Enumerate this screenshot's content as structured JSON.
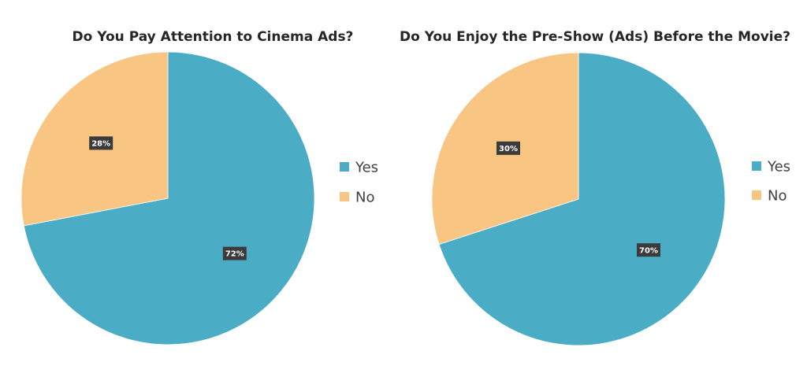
{
  "chart_data": [
    {
      "type": "pie",
      "title": "Do You Pay Attention to Cinema Ads?",
      "categories": [
        "Yes",
        "No"
      ],
      "values": [
        72,
        28
      ],
      "data_labels": [
        "72%",
        "28%"
      ],
      "colors": [
        "#4BACC6",
        "#F8C583"
      ],
      "legend": {
        "position": "right",
        "entries": [
          "Yes",
          "No"
        ]
      }
    },
    {
      "type": "pie",
      "title": "Do You Enjoy the Pre-Show (Ads) Before the Movie?",
      "categories": [
        "Yes",
        "No"
      ],
      "values": [
        70,
        30
      ],
      "data_labels": [
        "70%",
        "30%"
      ],
      "colors": [
        "#4BACC6",
        "#F8C583"
      ],
      "legend": {
        "position": "right",
        "entries": [
          "Yes",
          "No"
        ]
      }
    }
  ]
}
